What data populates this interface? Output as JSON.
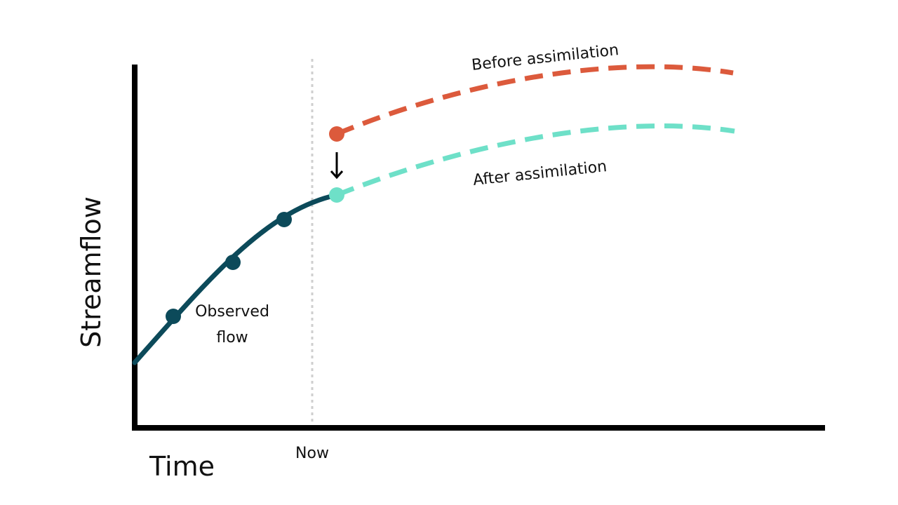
{
  "diagram": {
    "axis_labels": {
      "x": "Time",
      "y": "Streamflow"
    },
    "now_label": "Now",
    "curves": {
      "observed": {
        "label_line1": "Observed",
        "label_line2": "flow",
        "color": "#0c4a5a"
      },
      "before": {
        "label": "Before assimilation",
        "color": "#dc5a3c"
      },
      "after": {
        "label": "After assimilation",
        "color": "#6ee0c8"
      }
    },
    "update_arrow_icon": "down-arrow-icon"
  }
}
